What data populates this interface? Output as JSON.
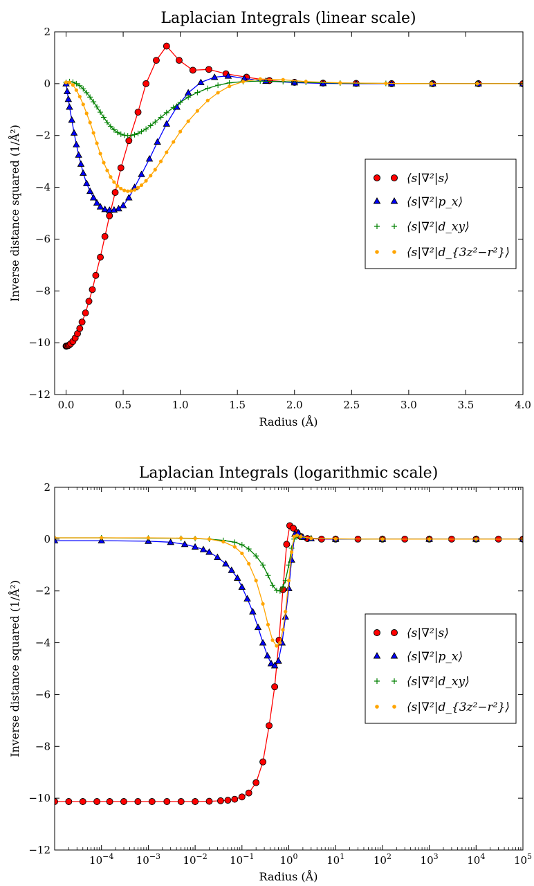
{
  "chart_data": [
    {
      "type": "line",
      "title": "Laplacian Integrals (linear scale)",
      "xlabel": "Radius (Å)",
      "ylabel": "Inverse distance squared (1/Å²)",
      "xscale": "linear",
      "xlim": [
        -0.1,
        4.0
      ],
      "ylim": [
        -12,
        2
      ],
      "xticks": [
        0.0,
        0.5,
        1.0,
        1.5,
        2.0,
        2.5,
        3.0,
        3.5,
        4.0
      ],
      "xtick_labels": [
        "0.0",
        "0.5",
        "1.0",
        "1.5",
        "2.0",
        "2.5",
        "3.0",
        "3.5",
        "4.0"
      ],
      "yticks": [
        -12,
        -10,
        -8,
        -6,
        -4,
        -2,
        0,
        2
      ],
      "ytick_labels": [
        "−12",
        "−10",
        "−8",
        "−6",
        "−4",
        "−2",
        "0",
        "2"
      ],
      "grid": false,
      "legend_position": "right",
      "series": [
        {
          "name": "⟨s|∇²|s⟩",
          "color": "#ff0000",
          "marker": "circle",
          "x": [
            0.0,
            0.005,
            0.01,
            0.02,
            0.03,
            0.04,
            0.06,
            0.08,
            0.1,
            0.12,
            0.14,
            0.17,
            0.2,
            0.23,
            0.26,
            0.3,
            0.34,
            0.38,
            0.43,
            0.48,
            0.55,
            0.63,
            0.7,
            0.79,
            0.88,
            0.99,
            1.11,
            1.25,
            1.4,
            1.58,
            1.78,
            2.0,
            2.25,
            2.54,
            2.85,
            3.21,
            3.61,
            4.0
          ],
          "y": [
            -10.13,
            -10.13,
            -10.12,
            -10.11,
            -10.08,
            -10.04,
            -9.95,
            -9.82,
            -9.65,
            -9.45,
            -9.2,
            -8.85,
            -8.4,
            -7.95,
            -7.4,
            -6.7,
            -5.9,
            -5.1,
            -4.2,
            -3.25,
            -2.2,
            -1.1,
            0.0,
            0.9,
            1.45,
            0.9,
            0.52,
            0.55,
            0.38,
            0.25,
            0.12,
            0.05,
            0.02,
            0.01,
            0.0,
            0.0,
            0.0,
            0.0
          ]
        },
        {
          "name": "⟨s|∇²|p_x⟩",
          "color": "#0000ff",
          "marker": "triangle",
          "x": [
            0.0,
            0.01,
            0.02,
            0.03,
            0.05,
            0.07,
            0.09,
            0.11,
            0.13,
            0.15,
            0.18,
            0.21,
            0.24,
            0.27,
            0.3,
            0.34,
            0.38,
            0.42,
            0.46,
            0.5,
            0.55,
            0.6,
            0.66,
            0.73,
            0.8,
            0.88,
            0.97,
            1.07,
            1.18,
            1.3,
            1.42,
            1.56,
            1.75,
            2.0,
            2.25,
            2.54,
            2.85,
            3.21,
            3.61,
            4.0
          ],
          "y": [
            0.0,
            -0.3,
            -0.6,
            -0.9,
            -1.4,
            -1.9,
            -2.35,
            -2.75,
            -3.1,
            -3.45,
            -3.85,
            -4.15,
            -4.4,
            -4.6,
            -4.75,
            -4.85,
            -4.88,
            -4.87,
            -4.82,
            -4.7,
            -4.4,
            -4.0,
            -3.5,
            -2.9,
            -2.25,
            -1.55,
            -0.9,
            -0.35,
            0.05,
            0.25,
            0.3,
            0.2,
            0.1,
            0.04,
            0.01,
            0.0,
            0.0,
            0.0,
            0.0,
            0.0
          ]
        },
        {
          "name": "⟨s|∇²|d_xy⟩",
          "color": "#008000",
          "marker": "plus",
          "x": [
            0.0,
            0.03,
            0.06,
            0.09,
            0.12,
            0.15,
            0.18,
            0.21,
            0.24,
            0.27,
            0.3,
            0.33,
            0.36,
            0.39,
            0.42,
            0.45,
            0.48,
            0.51,
            0.54,
            0.57,
            0.6,
            0.63,
            0.66,
            0.7,
            0.74,
            0.78,
            0.83,
            0.88,
            0.94,
            1.0,
            1.07,
            1.15,
            1.24,
            1.33,
            1.43,
            1.55,
            1.7,
            1.9,
            2.1,
            2.4,
            2.8,
            3.2,
            3.6,
            4.0
          ],
          "y": [
            0.05,
            0.08,
            0.06,
            0.0,
            -0.08,
            -0.2,
            -0.35,
            -0.52,
            -0.7,
            -0.9,
            -1.1,
            -1.3,
            -1.5,
            -1.65,
            -1.78,
            -1.88,
            -1.95,
            -1.99,
            -2.01,
            -2.0,
            -1.97,
            -1.92,
            -1.85,
            -1.75,
            -1.62,
            -1.48,
            -1.3,
            -1.12,
            -0.92,
            -0.72,
            -0.52,
            -0.34,
            -0.18,
            -0.06,
            0.03,
            0.08,
            0.1,
            0.08,
            0.05,
            0.02,
            0.01,
            0.0,
            0.0,
            0.0
          ]
        },
        {
          "name": "⟨s|∇²|d_{3z²−r²}⟩",
          "color": "#ffa500",
          "marker": "dot",
          "x": [
            0.0,
            0.03,
            0.06,
            0.09,
            0.12,
            0.15,
            0.18,
            0.21,
            0.24,
            0.27,
            0.3,
            0.33,
            0.36,
            0.39,
            0.42,
            0.45,
            0.48,
            0.51,
            0.54,
            0.57,
            0.6,
            0.63,
            0.66,
            0.7,
            0.74,
            0.78,
            0.83,
            0.88,
            0.94,
            1.0,
            1.07,
            1.15,
            1.24,
            1.33,
            1.43,
            1.55,
            1.7,
            1.9,
            2.1,
            2.4,
            2.8,
            3.2,
            3.6,
            4.0
          ],
          "y": [
            0.05,
            0.05,
            -0.05,
            -0.25,
            -0.5,
            -0.8,
            -1.15,
            -1.5,
            -1.9,
            -2.3,
            -2.7,
            -3.05,
            -3.35,
            -3.6,
            -3.8,
            -3.95,
            -4.05,
            -4.12,
            -4.15,
            -4.14,
            -4.1,
            -4.02,
            -3.92,
            -3.75,
            -3.55,
            -3.32,
            -3.0,
            -2.65,
            -2.25,
            -1.85,
            -1.45,
            -1.05,
            -0.65,
            -0.35,
            -0.1,
            0.08,
            0.18,
            0.15,
            0.08,
            0.03,
            0.01,
            0.0,
            0.0,
            0.0
          ]
        }
      ]
    },
    {
      "type": "line",
      "title": "Laplacian Integrals (logarithmic scale)",
      "xlabel": "Radius (Å)",
      "ylabel": "Inverse distance squared (1/Å²)",
      "xscale": "log",
      "xlim": [
        1e-05,
        100000
      ],
      "ylim": [
        -12,
        2
      ],
      "xticks": [
        0.0001,
        0.001,
        0.01,
        0.1,
        1,
        10,
        100,
        1000,
        10000,
        100000
      ],
      "xtick_labels": [
        [
          "10",
          "−4"
        ],
        [
          "10",
          "−3"
        ],
        [
          "10",
          "−2"
        ],
        [
          "10",
          "−1"
        ],
        [
          "10",
          "0"
        ],
        [
          "10",
          "1"
        ],
        [
          "10",
          "2"
        ],
        [
          "10",
          "3"
        ],
        [
          "10",
          "4"
        ],
        [
          "10",
          "5"
        ]
      ],
      "yticks": [
        -12,
        -10,
        -8,
        -6,
        -4,
        -2,
        0,
        2
      ],
      "ytick_labels": [
        "−12",
        "−10",
        "−8",
        "−6",
        "−4",
        "−2",
        "0",
        "2"
      ],
      "grid": false,
      "legend_position": "right",
      "series": [
        {
          "name": "⟨s|∇²|s⟩",
          "color": "#ff0000",
          "marker": "circle",
          "x": [
            1e-05,
            2e-05,
            4e-05,
            8e-05,
            0.00015,
            0.0003,
            0.0006,
            0.0012,
            0.0025,
            0.005,
            0.01,
            0.02,
            0.035,
            0.05,
            0.07,
            0.1,
            0.14,
            0.2,
            0.28,
            0.38,
            0.5,
            0.62,
            0.75,
            0.9,
            1.05,
            1.25,
            1.5,
            1.8,
            2.5,
            5,
            10,
            30,
            100,
            300,
            1000,
            3000,
            10000,
            30000,
            100000
          ],
          "y": [
            -10.13,
            -10.13,
            -10.13,
            -10.13,
            -10.13,
            -10.13,
            -10.13,
            -10.13,
            -10.13,
            -10.13,
            -10.13,
            -10.12,
            -10.1,
            -10.08,
            -10.04,
            -9.95,
            -9.8,
            -9.4,
            -8.6,
            -7.2,
            -5.7,
            -3.9,
            -1.95,
            -0.2,
            0.52,
            0.42,
            0.25,
            0.1,
            0.02,
            0.0,
            0.0,
            0.0,
            0.0,
            0.0,
            0.0,
            0.0,
            0.0,
            0.0,
            0.0
          ]
        },
        {
          "name": "⟨s|∇²|p_x⟩",
          "color": "#0000ff",
          "marker": "triangle",
          "x": [
            1e-05,
            0.0001,
            0.001,
            0.003,
            0.006,
            0.01,
            0.015,
            0.02,
            0.03,
            0.045,
            0.06,
            0.08,
            0.1,
            0.13,
            0.17,
            0.22,
            0.28,
            0.35,
            0.42,
            0.5,
            0.6,
            0.72,
            0.85,
            1.0,
            1.15,
            1.35,
            1.6,
            2.0,
            3,
            10,
            100,
            1000,
            10000,
            100000
          ],
          "y": [
            -0.06,
            -0.06,
            -0.08,
            -0.12,
            -0.2,
            -0.3,
            -0.4,
            -0.5,
            -0.7,
            -0.95,
            -1.2,
            -1.5,
            -1.85,
            -2.3,
            -2.8,
            -3.4,
            -4.0,
            -4.5,
            -4.8,
            -4.88,
            -4.7,
            -4.0,
            -3.0,
            -1.9,
            -0.8,
            0.2,
            0.25,
            0.08,
            0.02,
            0.0,
            0.0,
            0.0,
            0.0,
            0.0
          ]
        },
        {
          "name": "⟨s|∇²|d_xy⟩",
          "color": "#008000",
          "marker": "plus",
          "x": [
            1e-05,
            0.0001,
            0.001,
            0.005,
            0.01,
            0.02,
            0.04,
            0.07,
            0.1,
            0.14,
            0.2,
            0.28,
            0.36,
            0.45,
            0.55,
            0.65,
            0.75,
            0.85,
            1.0,
            1.15,
            1.3,
            1.5,
            1.8,
            3,
            10,
            100,
            1000,
            10000,
            100000
          ],
          "y": [
            0.05,
            0.05,
            0.04,
            0.03,
            0.02,
            0.0,
            -0.05,
            -0.12,
            -0.22,
            -0.38,
            -0.65,
            -1.0,
            -1.4,
            -1.78,
            -1.98,
            -2.0,
            -1.85,
            -1.6,
            -1.0,
            -0.35,
            0.0,
            0.1,
            0.08,
            0.03,
            0.01,
            0.0,
            0.0,
            0.0,
            0.0
          ]
        },
        {
          "name": "⟨s|∇²|d_{3z²−r²}⟩",
          "color": "#ffa500",
          "marker": "dot",
          "x": [
            1e-05,
            0.0001,
            0.001,
            0.005,
            0.01,
            0.02,
            0.04,
            0.07,
            0.1,
            0.14,
            0.2,
            0.28,
            0.36,
            0.45,
            0.55,
            0.65,
            0.75,
            0.85,
            1.0,
            1.15,
            1.3,
            1.5,
            1.8,
            3,
            10,
            100,
            1000,
            10000,
            100000
          ],
          "y": [
            0.05,
            0.05,
            0.05,
            0.04,
            0.03,
            0.0,
            -0.1,
            -0.3,
            -0.55,
            -0.95,
            -1.6,
            -2.5,
            -3.3,
            -3.9,
            -4.12,
            -4.0,
            -3.5,
            -2.8,
            -1.6,
            -0.5,
            0.1,
            0.15,
            0.1,
            0.03,
            0.01,
            0.0,
            0.0,
            0.0,
            0.0
          ]
        }
      ]
    }
  ]
}
